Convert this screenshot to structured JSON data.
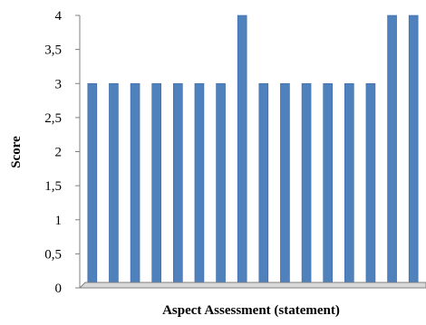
{
  "chart_data": {
    "type": "bar",
    "title": "",
    "xlabel": "Aspect Assessment (statement)",
    "ylabel": "Score",
    "categories": [
      "",
      "",
      "",
      "",
      "",
      "",
      "",
      "",
      "",
      "",
      "",
      "",
      "",
      "",
      "",
      ""
    ],
    "values": [
      3,
      3,
      3,
      3,
      3,
      3,
      3,
      4,
      3,
      3,
      3,
      3,
      3,
      3,
      4,
      4
    ],
    "ylim": [
      0,
      4
    ],
    "yticks": [
      "0",
      "0,5",
      "1",
      "1,5",
      "2",
      "2,5",
      "3",
      "3,5",
      "4"
    ],
    "bar_color": "#4f81bd",
    "grid": false,
    "legend": "none"
  }
}
